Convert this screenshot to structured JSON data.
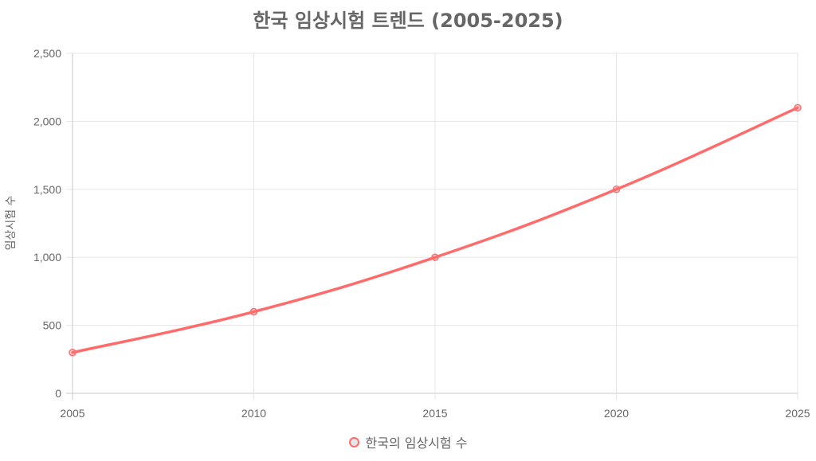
{
  "chart_data": {
    "type": "line",
    "title": "한국 임상시험 트렌드 (2005-2025)",
    "xlabel": "",
    "ylabel": "임상시험 수",
    "categories": [
      "2005",
      "2010",
      "2015",
      "2020",
      "2025"
    ],
    "series": [
      {
        "name": "한국의 임상시험 수",
        "values": [
          300,
          600,
          1000,
          1500,
          2100
        ],
        "color": "#ff6b6b"
      }
    ],
    "ylim": [
      0,
      2500
    ],
    "yticks": [
      "0",
      "500",
      "1,000",
      "1,500",
      "2,000",
      "2,500"
    ],
    "grid": true,
    "legend_position": "bottom"
  }
}
